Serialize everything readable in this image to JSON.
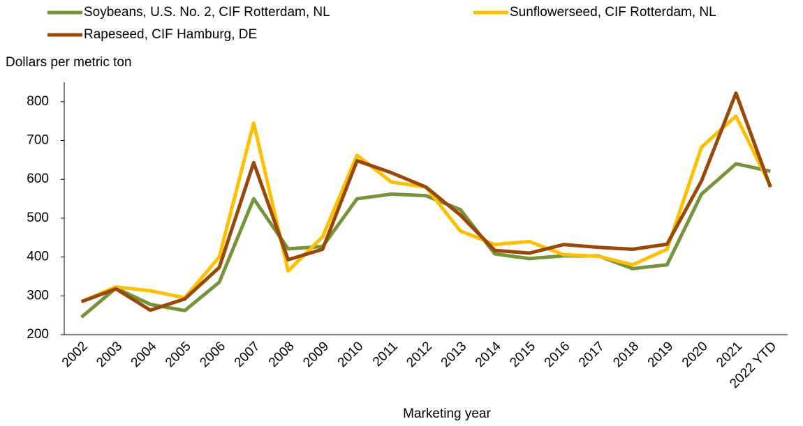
{
  "chart_data": {
    "type": "line",
    "y_label": "Dollars per metric ton",
    "x_label": "Marketing year",
    "categories": [
      "2002",
      "2003",
      "2004",
      "2005",
      "2006",
      "2007",
      "2008",
      "2009",
      "2010",
      "2011",
      "2012",
      "2013",
      "2014",
      "2015",
      "2016",
      "2017",
      "2018",
      "2019",
      "2020",
      "2021",
      "2022 YTD"
    ],
    "series": [
      {
        "name": "Soybeans, U.S. No. 2, CIF Rotterdam, NL",
        "color": "#77933c",
        "values": [
          245,
          320,
          278,
          262,
          335,
          550,
          421,
          427,
          550,
          562,
          558,
          522,
          408,
          396,
          403,
          403,
          370,
          380,
          562,
          640,
          621
        ]
      },
      {
        "name": "Sunflowerseed, CIF Rotterdam, NL",
        "color": "#ffc000",
        "values": [
          285,
          323,
          313,
          295,
          400,
          745,
          364,
          452,
          662,
          593,
          580,
          467,
          432,
          440,
          406,
          402,
          380,
          420,
          683,
          763,
          584
        ]
      },
      {
        "name": "Rapeseed, CIF Hamburg, DE",
        "color": "#984807",
        "values": [
          285,
          318,
          263,
          292,
          373,
          643,
          393,
          420,
          648,
          617,
          580,
          508,
          417,
          410,
          432,
          425,
          420,
          433,
          596,
          822,
          580
        ]
      }
    ],
    "ylim": [
      200,
      850
    ],
    "yticks": [
      200,
      300,
      400,
      500,
      600,
      700,
      800
    ],
    "grid": false
  }
}
